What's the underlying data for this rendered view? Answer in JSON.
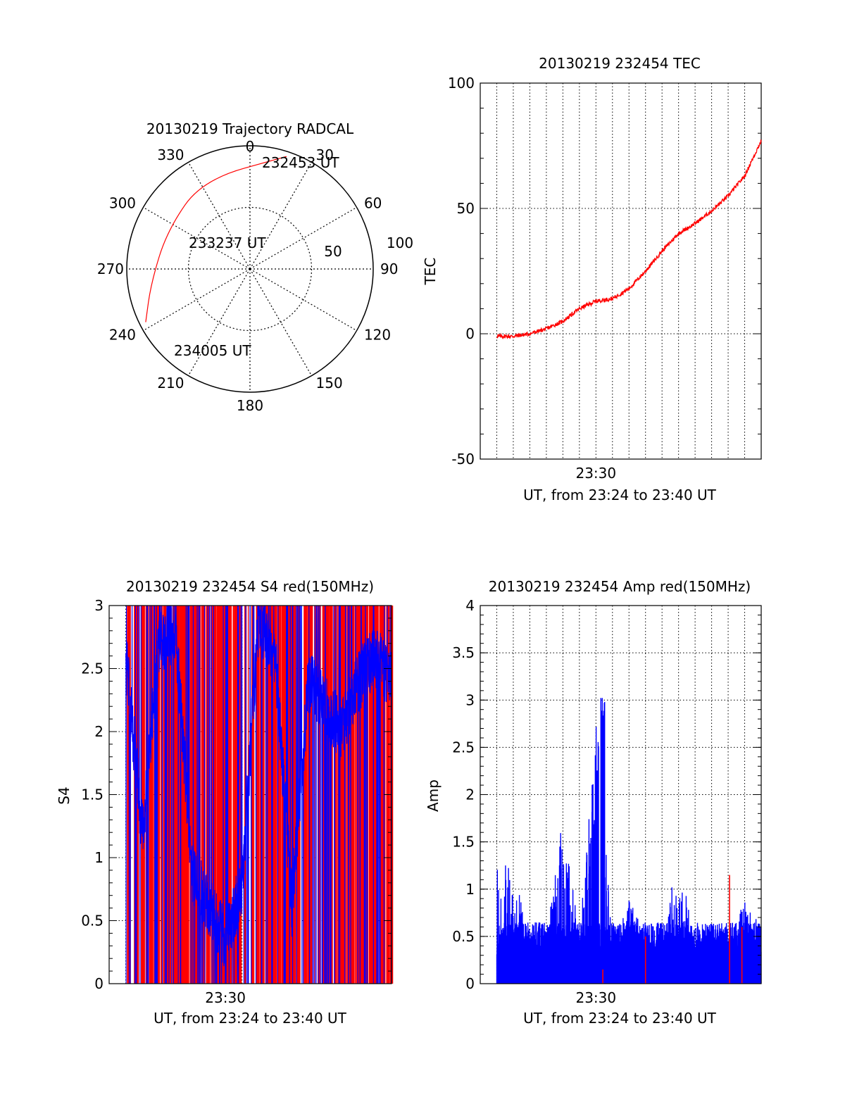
{
  "chart_data": [
    {
      "type": "polar",
      "title": "20130219 Trajectory RADCAL",
      "azimuth_labels": [
        "0",
        "30",
        "60",
        "90",
        "120",
        "150",
        "180",
        "210",
        "240",
        "270",
        "300",
        "330"
      ],
      "elevation_labels": [
        "50",
        "100"
      ],
      "rmax": 100,
      "series": [
        {
          "color": "#ff0000",
          "points": [
            {
              "az": 18,
              "r": 96
            },
            {
              "az": 332,
              "r": 82
            },
            {
              "az": 295,
              "r": 74
            },
            {
              "az": 262,
              "r": 81
            },
            {
              "az": 243,
              "r": 95
            }
          ]
        }
      ],
      "annotations": [
        {
          "text": "232453 UT",
          "az": 18,
          "r": 96
        },
        {
          "text": "233237 UT",
          "az": 300,
          "r": 52
        },
        {
          "text": "234005 UT",
          "az": 230,
          "r": 100
        }
      ]
    },
    {
      "type": "line",
      "title": "20130219 232454 TEC",
      "xlabel": "UT, from 23:24 to 23:40 UT",
      "ylabel": "TEC",
      "xlim": [
        "23:23:00",
        "23:40:00"
      ],
      "ylim": [
        -50,
        100
      ],
      "yticks": [
        "-50",
        "0",
        "50",
        "100"
      ],
      "xticks": [
        "23:30"
      ],
      "grid": true,
      "series": [
        {
          "color": "#ff0000",
          "x": [
            "23:24",
            "23:25",
            "23:26",
            "23:27",
            "23:28",
            "23:29",
            "23:30",
            "23:31",
            "23:32",
            "23:33",
            "23:34",
            "23:35",
            "23:36",
            "23:37",
            "23:38",
            "23:39",
            "23:40"
          ],
          "values": [
            -1,
            -1,
            0,
            2,
            5,
            10,
            13,
            14,
            18,
            25,
            33,
            40,
            44,
            49,
            55,
            63,
            77
          ]
        }
      ]
    },
    {
      "type": "line",
      "title": "20130219 232454 S4 red(150MHz)",
      "xlabel": "UT, from 23:24 to 23:40 UT",
      "ylabel": "S4",
      "xlim": [
        "23:23:00",
        "23:40:00"
      ],
      "ylim": [
        0,
        3
      ],
      "yticks": [
        "0",
        "0.5",
        "1",
        "1.5",
        "2",
        "2.5",
        "3"
      ],
      "xticks": [
        "23:30"
      ],
      "grid": true,
      "series": [
        {
          "color": "#ff0000"
        },
        {
          "color": "#0000ff",
          "x": [
            "23:24",
            "23:25",
            "23:26",
            "23:27",
            "23:28",
            "23:29",
            "23:30",
            "23:31",
            "23:32",
            "23:33",
            "23:34",
            "23:35",
            "23:36",
            "23:37",
            "23:38",
            "23:39",
            "23:40"
          ],
          "values": [
            2.6,
            1.2,
            2.7,
            2.8,
            0.9,
            0.6,
            0.35,
            0.8,
            2.9,
            2.6,
            0.6,
            2.4,
            2.2,
            2.0,
            2.4,
            2.6,
            2.4
          ]
        }
      ]
    },
    {
      "type": "bar",
      "title": "20130219 232454 Amp red(150MHz)",
      "xlabel": "UT, from 23:24 to 23:40 UT",
      "ylabel": "Amp",
      "xlim": [
        "23:23:00",
        "23:40:00"
      ],
      "ylim": [
        0,
        4
      ],
      "yticks": [
        "0",
        "0.5",
        "1",
        "1.5",
        "2",
        "2.5",
        "3",
        "3.5",
        "4"
      ],
      "xticks": [
        "23:30"
      ],
      "grid": true,
      "series": [
        {
          "color": "#0000ff",
          "x": [
            "23:24",
            "23:25",
            "23:26",
            "23:27",
            "23:28",
            "23:29",
            "23:30",
            "23:31",
            "23:32",
            "23:33",
            "23:34",
            "23:35",
            "23:36",
            "23:37",
            "23:38",
            "23:39",
            "23:40"
          ],
          "values": [
            1.4,
            1.2,
            0.5,
            0.5,
            1.8,
            0.5,
            3.05,
            0.4,
            0.9,
            0.5,
            0.4,
            1.45,
            0.5,
            0.7,
            0.5,
            0.9,
            0.6
          ]
        },
        {
          "color": "#ff0000"
        }
      ]
    }
  ]
}
